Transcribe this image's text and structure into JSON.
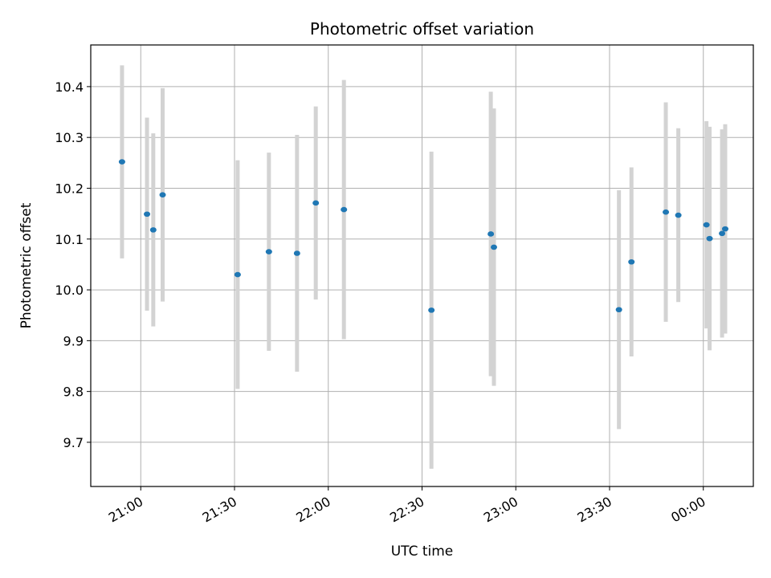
{
  "chart_data": {
    "type": "scatter",
    "title": "Photometric offset variation",
    "xlabel": "UTC time",
    "ylabel": "Photometric offset",
    "x_tick_labels": [
      "21:00",
      "21:30",
      "22:00",
      "22:30",
      "23:00",
      "23:30",
      "00:00"
    ],
    "y_ticks": [
      9.7,
      9.8,
      9.9,
      10.0,
      10.1,
      10.2,
      10.3,
      10.4
    ],
    "y_tick_labels": [
      "9.7",
      "9.8",
      "9.9",
      "10.0",
      "10.1",
      "10.2",
      "10.3",
      "10.4"
    ],
    "xlim": [
      "20:44",
      "00:16"
    ],
    "ylim": [
      9.613,
      10.482
    ],
    "grid": true,
    "marker_color": "#1f77b4",
    "errorbar_color": "#d3d3d3",
    "points": [
      {
        "x": "20:54",
        "y": 10.252,
        "err": 0.19
      },
      {
        "x": "21:02",
        "y": 10.149,
        "err": 0.19
      },
      {
        "x": "21:04",
        "y": 10.118,
        "err": 0.19
      },
      {
        "x": "21:07",
        "y": 10.187,
        "err": 0.21
      },
      {
        "x": "21:31",
        "y": 10.03,
        "err": 0.225
      },
      {
        "x": "21:41",
        "y": 10.075,
        "err": 0.195
      },
      {
        "x": "21:50",
        "y": 10.072,
        "err": 0.233
      },
      {
        "x": "21:56",
        "y": 10.171,
        "err": 0.19
      },
      {
        "x": "22:05",
        "y": 10.158,
        "err": 0.255
      },
      {
        "x": "22:33",
        "y": 9.96,
        "err": 0.312
      },
      {
        "x": "22:52",
        "y": 10.11,
        "err": 0.28
      },
      {
        "x": "22:53",
        "y": 10.084,
        "err": 0.273
      },
      {
        "x": "23:33",
        "y": 9.961,
        "err": 0.235
      },
      {
        "x": "23:37",
        "y": 10.055,
        "err": 0.186
      },
      {
        "x": "23:48",
        "y": 10.153,
        "err": 0.216
      },
      {
        "x": "23:52",
        "y": 10.147,
        "err": 0.171
      },
      {
        "x": "00:01",
        "y": 10.128,
        "err": 0.204
      },
      {
        "x": "00:02",
        "y": 10.101,
        "err": 0.22
      },
      {
        "x": "00:06",
        "y": 10.111,
        "err": 0.205
      },
      {
        "x": "00:07",
        "y": 10.12,
        "err": 0.206
      }
    ]
  }
}
